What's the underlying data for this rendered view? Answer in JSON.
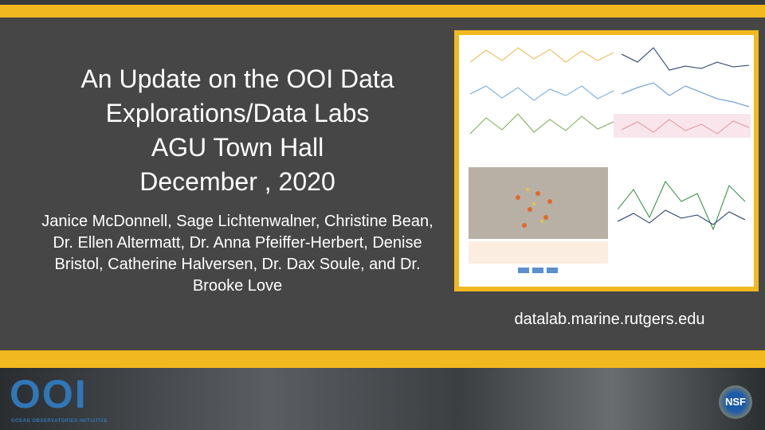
{
  "slide": {
    "title": [
      "An Update on the OOI Data",
      "Explorations/Data Labs",
      "AGU Town Hall",
      "December , 2020"
    ],
    "authors": "Janice McDonnell, Sage Lichtenwalner, Christine Bean, Dr. Ellen Altermatt, Dr. Anna Pfeiffer-Herbert, Denise Bristol, Catherine Halversen, Dr. Dax Soule, and Dr. Brooke Love",
    "url": "datalab.marine.rutgers.edu"
  },
  "logos": {
    "ooi": "OOI",
    "ooi_tagline": "OCEAN OBSERVATORIES INITIATIVE",
    "nsf": "NSF"
  }
}
